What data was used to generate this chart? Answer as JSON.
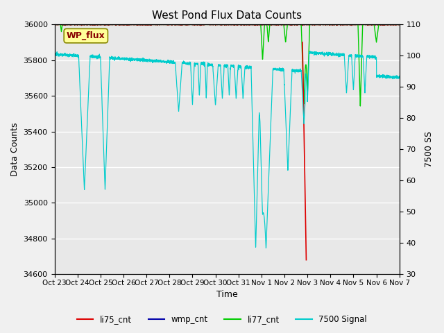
{
  "title": "West Pond Flux Data Counts",
  "ylabel_left": "Data Counts",
  "ylabel_right": "7500 SS",
  "xlabel": "Time",
  "ylim_left": [
    34600,
    36000
  ],
  "ylim_right": [
    30,
    110
  ],
  "x_tick_labels": [
    "Oct 23",
    "Oct 24",
    "Oct 25",
    "Oct 26",
    "Oct 27",
    "Oct 28",
    "Oct 29",
    "Oct 30",
    "Oct 31",
    "Nov 1",
    "Nov 2",
    "Nov 3",
    "Nov 4",
    "Nov 5",
    "Nov 6",
    "Nov 7"
  ],
  "legend_labels": [
    "li75_cnt",
    "wmp_cnt",
    "li77_cnt",
    "7500 Signal"
  ],
  "legend_colors": [
    "#ff0000",
    "#0000aa",
    "#00cc00",
    "#00cccc"
  ],
  "wp_flux_box_color": "#ffff99",
  "wp_flux_text_color": "#880000",
  "background_color": "#e8e8e8",
  "grid_color": "#ffffff",
  "fig_facecolor": "#f0f0f0"
}
